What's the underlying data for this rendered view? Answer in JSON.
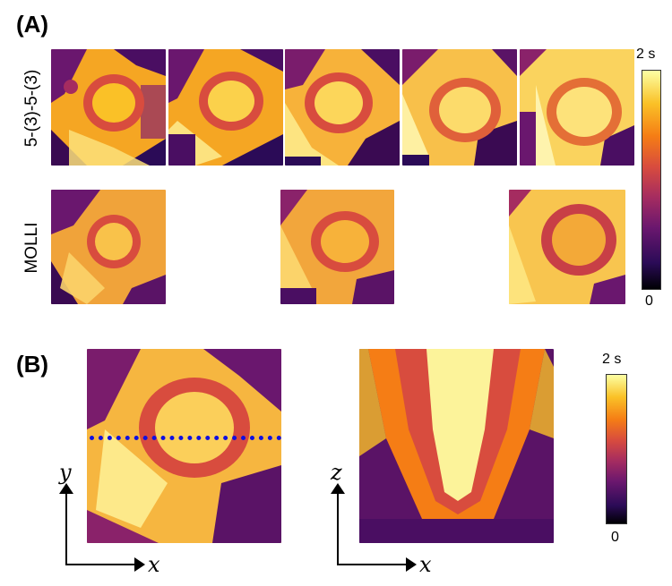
{
  "figure": {
    "panel_a_label": "(A)",
    "panel_b_label": "(B)",
    "row_top_label": "5-(3)-5-(3)",
    "row_bottom_label": "MOLLI",
    "colorbar_a": {
      "max_label": "2 s",
      "min_label": "0"
    },
    "colorbar_b": {
      "max_label": "2 s",
      "min_label": "0"
    },
    "axes_left": {
      "vertical": "y",
      "horizontal": "x"
    },
    "axes_right": {
      "vertical": "z",
      "horizontal": "x"
    },
    "dashed_line_color": "#1010e0",
    "colormap": [
      "#000004",
      "#2b0b57",
      "#6a176e",
      "#a52c60",
      "#d84c3e",
      "#f57d15",
      "#fac127",
      "#fcffa4"
    ]
  },
  "images": {
    "top_row": [
      {
        "id": "t1",
        "desc": "short-axis T1 map slice 1"
      },
      {
        "id": "t2",
        "desc": "short-axis T1 map slice 2"
      },
      {
        "id": "t3",
        "desc": "short-axis T1 map slice 3"
      },
      {
        "id": "t4",
        "desc": "short-axis T1 map slice 4"
      },
      {
        "id": "t5",
        "desc": "short-axis T1 map slice 5"
      }
    ],
    "bottom_row": [
      {
        "id": "m1"
      },
      {
        "id": "m2"
      },
      {
        "id": "m3"
      }
    ]
  }
}
